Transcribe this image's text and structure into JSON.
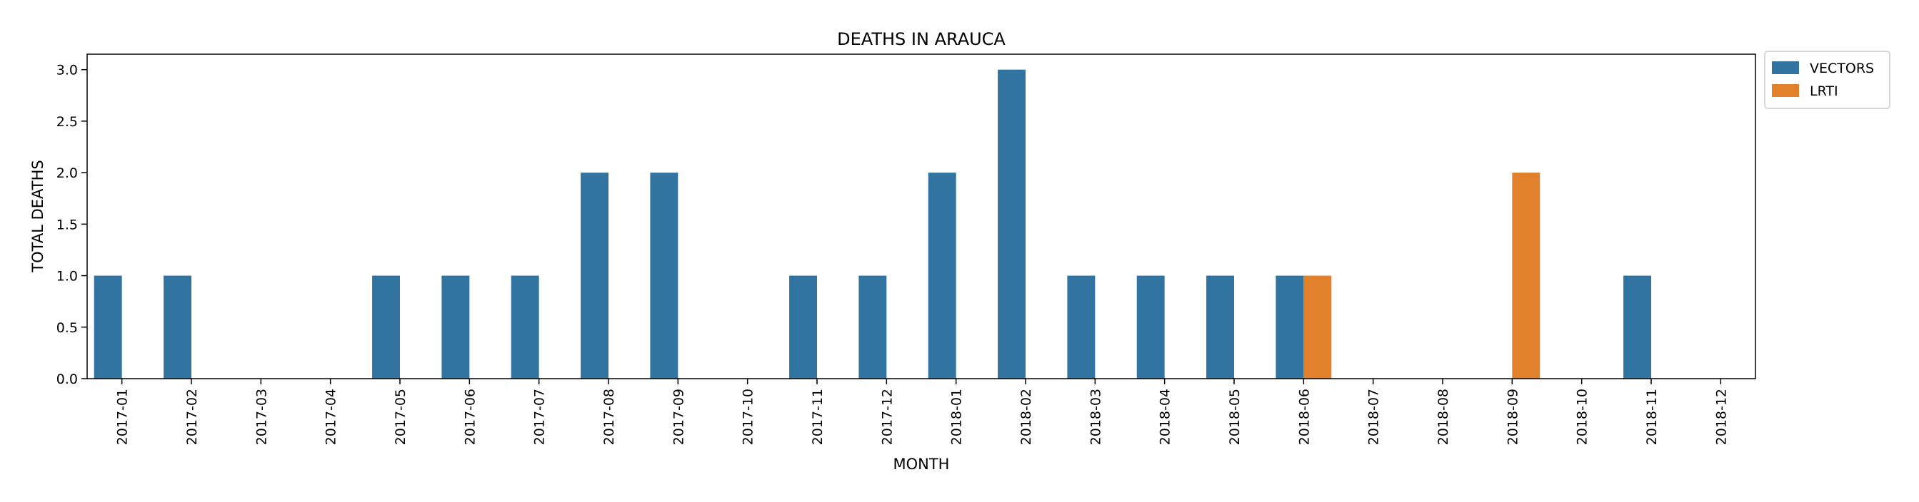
{
  "chart_data": {
    "type": "bar",
    "title": "DEATHS IN ARAUCA",
    "xlabel": "MONTH",
    "ylabel": "TOTAL DEATHS",
    "ylim": [
      0,
      3.15
    ],
    "yticks": [
      "0.0",
      "0.5",
      "1.0",
      "1.5",
      "2.0",
      "2.5",
      "3.0"
    ],
    "grid": false,
    "legend_position": "outside top-right",
    "categories": [
      "2017-01",
      "2017-02",
      "2017-03",
      "2017-04",
      "2017-05",
      "2017-06",
      "2017-07",
      "2017-08",
      "2017-09",
      "2017-10",
      "2017-11",
      "2017-12",
      "2018-01",
      "2018-02",
      "2018-03",
      "2018-04",
      "2018-05",
      "2018-06",
      "2018-07",
      "2018-08",
      "2018-09",
      "2018-10",
      "2018-11",
      "2018-12"
    ],
    "series": [
      {
        "name": "VECTORS",
        "color": "#3274a1",
        "values": [
          1,
          1,
          0,
          0,
          1,
          1,
          1,
          2,
          2,
          0,
          1,
          1,
          2,
          3,
          1,
          1,
          1,
          1,
          0,
          0,
          0,
          0,
          1,
          0
        ]
      },
      {
        "name": "LRTI",
        "color": "#e1812c",
        "values": [
          0,
          0,
          0,
          0,
          0,
          0,
          0,
          0,
          0,
          0,
          0,
          0,
          0,
          0,
          0,
          0,
          0,
          1,
          0,
          0,
          2,
          0,
          0,
          0
        ]
      }
    ]
  }
}
